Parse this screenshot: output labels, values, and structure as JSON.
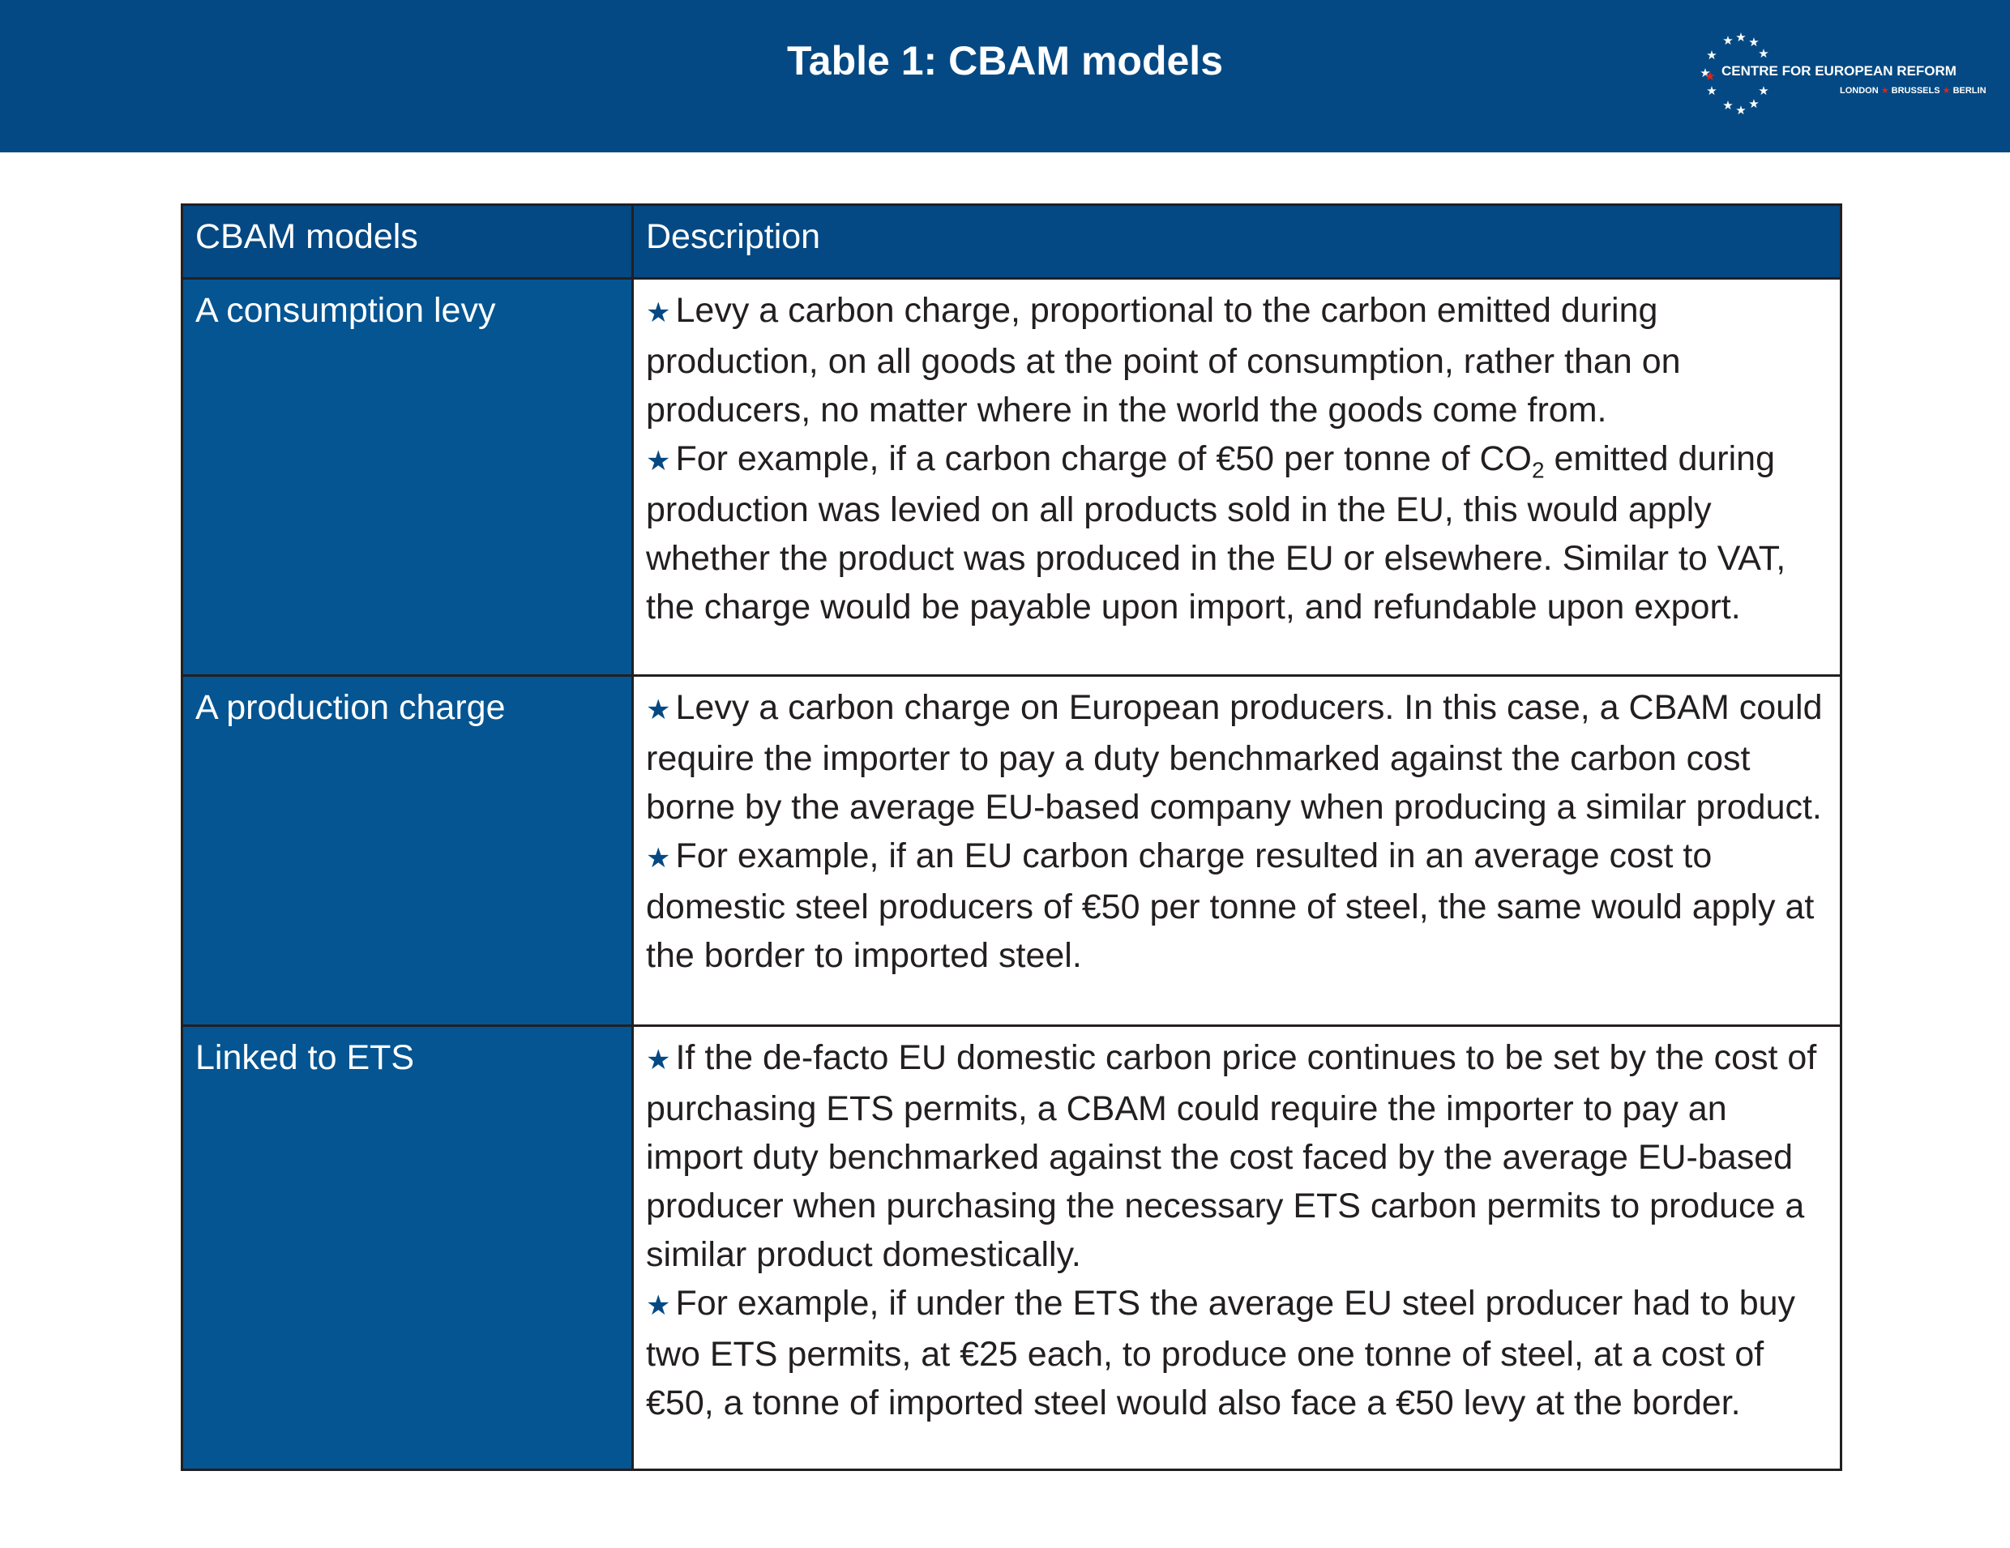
{
  "header": {
    "title": "Table 1: CBAM models",
    "logo_name": "CENTRE FOR EUROPEAN REFORM",
    "logo_cities": [
      "LONDON",
      "BRUSSELS",
      "BERLIN"
    ]
  },
  "table": {
    "headers": [
      "CBAM models",
      "Description"
    ],
    "rows": [
      {
        "model": "A consumption levy",
        "bullets": [
          "Levy a carbon charge, proportional to the carbon emitted during production, on all goods at the point of consumption, rather than on producers, no matter where in the world the goods come from.",
          "For example, if a carbon charge of €50 per tonne of CO2 emitted during production was levied on all products sold in the EU, this would apply whether the product was produced in the EU or elsewhere. Similar to VAT, the charge would be payable upon import, and refundable upon export."
        ]
      },
      {
        "model": "A production charge",
        "bullets": [
          "Levy a carbon charge on European producers. In this case, a CBAM could require the importer to pay a duty benchmarked against the carbon cost borne by the average EU-based company when producing a similar product.",
          "For example, if an EU carbon charge resulted in an average cost to domestic steel producers of €50 per tonne of steel, the same would apply at the border to imported steel."
        ]
      },
      {
        "model": "Linked to ETS",
        "bullets": [
          "If the de-facto EU domestic carbon price continues to be set by the cost of purchasing ETS permits, a CBAM could require the importer to pay an import duty benchmarked against the cost faced by the average EU-based producer when purchasing the necessary ETS carbon permits to produce a similar product domestically.",
          "For example, if under the ETS the average EU steel producer had to buy two ETS permits, at €25 each, to produce one tonne of steel, at a cost of €50, a tonne of imported steel would also face a €50 levy at the border."
        ]
      }
    ]
  },
  "colors": {
    "header_bg": "#044983",
    "model_cell_bg": "#045592",
    "star": "#044983",
    "logo_star_accent": "#e2231a"
  },
  "icons": {
    "bullet": "star-icon",
    "logo": "eu-star-circle-icon"
  }
}
